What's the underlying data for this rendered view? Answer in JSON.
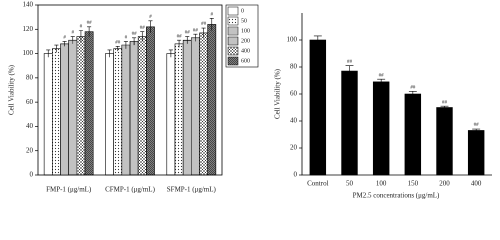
{
  "chart_data": [
    {
      "type": "bar",
      "ylabel": "Cell Viability (%)",
      "categories": [
        "FMP-1 (μg/mL)",
        "CFMP-1 (μg/mL)",
        "SFMP-1 (μg/mL)"
      ],
      "series": [
        {
          "name": "0",
          "color": "#ffffff",
          "pattern": "none",
          "values": [
            100,
            100,
            100
          ],
          "errors": [
            3,
            3,
            3
          ],
          "annotations": [
            null,
            null,
            null
          ]
        },
        {
          "name": "50",
          "color": "#ffffff",
          "pattern": "dots",
          "values": [
            104,
            104,
            108
          ],
          "errors": [
            3,
            2,
            3
          ],
          "annotations": [
            null,
            "##",
            "##"
          ]
        },
        {
          "name": "100",
          "color": "#ffffff",
          "pattern": "hlines",
          "values": [
            108,
            107,
            111
          ],
          "errors": [
            2,
            3,
            3
          ],
          "annotations": [
            "#",
            "#",
            "##"
          ]
        },
        {
          "name": "200",
          "color": "#ffffff",
          "pattern": "vlines",
          "values": [
            111,
            110,
            113
          ],
          "errors": [
            3,
            3,
            3
          ],
          "annotations": [
            "#",
            "##",
            "##"
          ]
        },
        {
          "name": "400",
          "color": "#ffffff",
          "pattern": "cross",
          "values": [
            114,
            114,
            117
          ],
          "errors": [
            5,
            4,
            4
          ],
          "annotations": [
            "#",
            "##",
            "##"
          ]
        },
        {
          "name": "600",
          "color": "#555555",
          "pattern": "dense",
          "values": [
            118,
            122,
            124
          ],
          "errors": [
            4,
            5,
            5
          ],
          "annotations": [
            "##",
            "#",
            "#"
          ]
        }
      ],
      "ylim": [
        0,
        140
      ],
      "yticks": [
        0,
        20,
        40,
        60,
        80,
        100,
        120,
        140
      ]
    },
    {
      "type": "bar",
      "ylabel": "Cell Viability (%)",
      "xlabel": "PM2.5 concentrations (μg/mL)",
      "categories": [
        "Control",
        "50",
        "100",
        "150",
        "200",
        "400"
      ],
      "values": [
        100,
        77,
        69,
        60,
        50,
        33
      ],
      "errors": [
        3,
        4,
        2,
        2,
        1,
        1
      ],
      "annotations": [
        null,
        "##",
        "##",
        "##",
        "##",
        "##"
      ],
      "color": "#000000",
      "ylim": [
        0,
        120
      ],
      "yticks": [
        0,
        20,
        40,
        60,
        80,
        100
      ]
    }
  ]
}
